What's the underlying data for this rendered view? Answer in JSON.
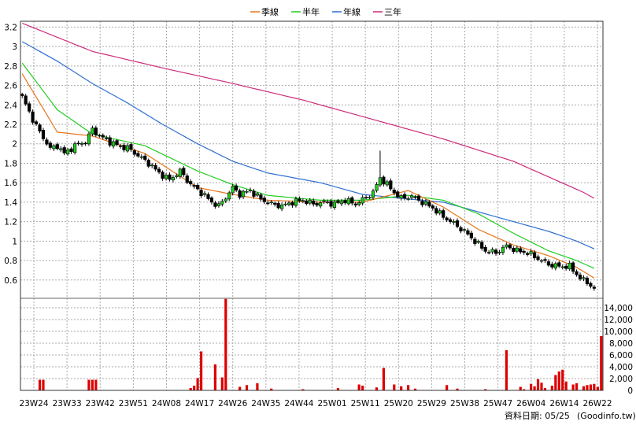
{
  "legend": {
    "items": [
      {
        "label": "季線",
        "color": "#e8741a"
      },
      {
        "label": "半年",
        "color": "#22cc22"
      },
      {
        "label": "年線",
        "color": "#2f6fd0"
      },
      {
        "label": "三年",
        "color": "#cc2a7a"
      }
    ]
  },
  "footer": {
    "date_label": "資料日期: 05/25",
    "source_label": "(Goodinfo.tw)"
  },
  "colors": {
    "up_candle": "#22cc22",
    "down_candle": "#000000",
    "volume_bar": "#dd0000",
    "grid": "#aaaaaa"
  },
  "chart_data": {
    "type": "candlestick+line+bar",
    "x_ticks": [
      "23W24",
      "23W33",
      "23W42",
      "23W51",
      "24W08",
      "24W17",
      "24W26",
      "24W35",
      "24W44",
      "25W01",
      "25W11",
      "25W20",
      "25W29",
      "25W38",
      "25W47",
      "26W04",
      "26W14",
      "26W22"
    ],
    "price_axis": {
      "ticks": [
        "3.2",
        "3",
        "2.8",
        "2.6",
        "2.4",
        "2.2",
        "2",
        "1.8",
        "1.6",
        "1.4",
        "1.2",
        "1",
        "0.8",
        "0.6"
      ],
      "min": 0.42,
      "max": 3.26
    },
    "volume_axis": {
      "ticks": [
        "14,000",
        "12,000",
        "10,000",
        "8,000",
        "6,000",
        "4,000",
        "2,000",
        "0"
      ],
      "min": 0,
      "max": 15600
    },
    "price_anchors": [
      [
        0,
        2.48
      ],
      [
        3,
        2.25
      ],
      [
        5,
        2.12
      ],
      [
        8,
        1.95
      ],
      [
        10,
        1.98
      ],
      [
        12,
        1.9
      ],
      [
        15,
        1.98
      ],
      [
        18,
        2.02
      ],
      [
        20,
        2.15
      ],
      [
        22,
        2.08
      ],
      [
        25,
        2.02
      ],
      [
        28,
        1.97
      ],
      [
        30,
        1.96
      ],
      [
        33,
        1.88
      ],
      [
        36,
        1.8
      ],
      [
        39,
        1.7
      ],
      [
        42,
        1.63
      ],
      [
        45,
        1.72
      ],
      [
        48,
        1.58
      ],
      [
        51,
        1.5
      ],
      [
        54,
        1.4
      ],
      [
        56,
        1.36
      ],
      [
        58,
        1.45
      ],
      [
        60,
        1.55
      ],
      [
        62,
        1.48
      ],
      [
        65,
        1.52
      ],
      [
        68,
        1.43
      ],
      [
        71,
        1.38
      ],
      [
        74,
        1.36
      ],
      [
        77,
        1.4
      ],
      [
        80,
        1.42
      ],
      [
        83,
        1.38
      ],
      [
        86,
        1.4
      ],
      [
        89,
        1.38
      ],
      [
        92,
        1.42
      ],
      [
        95,
        1.38
      ],
      [
        98,
        1.45
      ],
      [
        100,
        1.5
      ],
      [
        102,
        1.65
      ],
      [
        104,
        1.58
      ],
      [
        106,
        1.5
      ],
      [
        108,
        1.44
      ],
      [
        111,
        1.46
      ],
      [
        114,
        1.4
      ],
      [
        117,
        1.34
      ],
      [
        120,
        1.25
      ],
      [
        123,
        1.18
      ],
      [
        126,
        1.1
      ],
      [
        129,
        1.0
      ],
      [
        132,
        0.9
      ],
      [
        135,
        0.88
      ],
      [
        138,
        0.95
      ],
      [
        141,
        0.9
      ],
      [
        144,
        0.88
      ],
      [
        147,
        0.82
      ],
      [
        150,
        0.76
      ],
      [
        153,
        0.74
      ],
      [
        156,
        0.74
      ],
      [
        159,
        0.62
      ],
      [
        162,
        0.55
      ],
      [
        163,
        0.5
      ]
    ],
    "sma_quarter": [
      [
        0,
        2.72
      ],
      [
        10,
        2.12
      ],
      [
        20,
        2.08
      ],
      [
        35,
        1.9
      ],
      [
        50,
        1.55
      ],
      [
        60,
        1.48
      ],
      [
        70,
        1.42
      ],
      [
        85,
        1.4
      ],
      [
        97,
        1.4
      ],
      [
        110,
        1.52
      ],
      [
        120,
        1.35
      ],
      [
        130,
        1.12
      ],
      [
        140,
        0.96
      ],
      [
        150,
        0.85
      ],
      [
        158,
        0.73
      ],
      [
        163,
        0.62
      ]
    ],
    "sma_half": [
      [
        0,
        2.83
      ],
      [
        10,
        2.35
      ],
      [
        20,
        2.1
      ],
      [
        35,
        1.98
      ],
      [
        50,
        1.72
      ],
      [
        60,
        1.58
      ],
      [
        70,
        1.47
      ],
      [
        85,
        1.42
      ],
      [
        97,
        1.42
      ],
      [
        110,
        1.47
      ],
      [
        120,
        1.42
      ],
      [
        130,
        1.28
      ],
      [
        140,
        1.08
      ],
      [
        150,
        0.9
      ],
      [
        158,
        0.8
      ],
      [
        163,
        0.72
      ]
    ],
    "sma_year": [
      [
        0,
        3.05
      ],
      [
        10,
        2.85
      ],
      [
        20,
        2.62
      ],
      [
        30,
        2.42
      ],
      [
        40,
        2.2
      ],
      [
        50,
        2.0
      ],
      [
        60,
        1.82
      ],
      [
        70,
        1.7
      ],
      [
        85,
        1.6
      ],
      [
        97,
        1.48
      ],
      [
        108,
        1.44
      ],
      [
        120,
        1.4
      ],
      [
        130,
        1.3
      ],
      [
        140,
        1.2
      ],
      [
        150,
        1.1
      ],
      [
        158,
        1.0
      ],
      [
        163,
        0.92
      ]
    ],
    "sma_3year": [
      [
        0,
        3.24
      ],
      [
        20,
        2.95
      ],
      [
        40,
        2.78
      ],
      [
        60,
        2.62
      ],
      [
        80,
        2.45
      ],
      [
        100,
        2.25
      ],
      [
        120,
        2.05
      ],
      [
        140,
        1.82
      ],
      [
        160,
        1.5
      ],
      [
        163,
        1.44
      ]
    ],
    "volume": [
      [
        5,
        1800
      ],
      [
        6,
        1800
      ],
      [
        19,
        1800
      ],
      [
        20,
        1800
      ],
      [
        21,
        1800
      ],
      [
        48,
        400
      ],
      [
        49,
        800
      ],
      [
        50,
        2100
      ],
      [
        51,
        6600
      ],
      [
        55,
        4400
      ],
      [
        57,
        2200
      ],
      [
        58,
        15500
      ],
      [
        62,
        600
      ],
      [
        64,
        900
      ],
      [
        67,
        1200
      ],
      [
        71,
        300
      ],
      [
        80,
        200
      ],
      [
        90,
        400
      ],
      [
        96,
        1000
      ],
      [
        97,
        800
      ],
      [
        101,
        500
      ],
      [
        103,
        3800
      ],
      [
        106,
        1000
      ],
      [
        108,
        700
      ],
      [
        110,
        900
      ],
      [
        112,
        300
      ],
      [
        121,
        900
      ],
      [
        124,
        300
      ],
      [
        132,
        200
      ],
      [
        138,
        6800
      ],
      [
        142,
        600
      ],
      [
        143,
        200
      ],
      [
        145,
        1100
      ],
      [
        146,
        700
      ],
      [
        147,
        1900
      ],
      [
        148,
        1300
      ],
      [
        149,
        400
      ],
      [
        151,
        800
      ],
      [
        152,
        2600
      ],
      [
        153,
        3200
      ],
      [
        154,
        3500
      ],
      [
        155,
        1500
      ],
      [
        157,
        1000
      ],
      [
        158,
        1200
      ],
      [
        160,
        700
      ],
      [
        161,
        900
      ],
      [
        162,
        1000
      ],
      [
        163,
        1100
      ],
      [
        164,
        600
      ],
      [
        165,
        9200
      ]
    ]
  }
}
